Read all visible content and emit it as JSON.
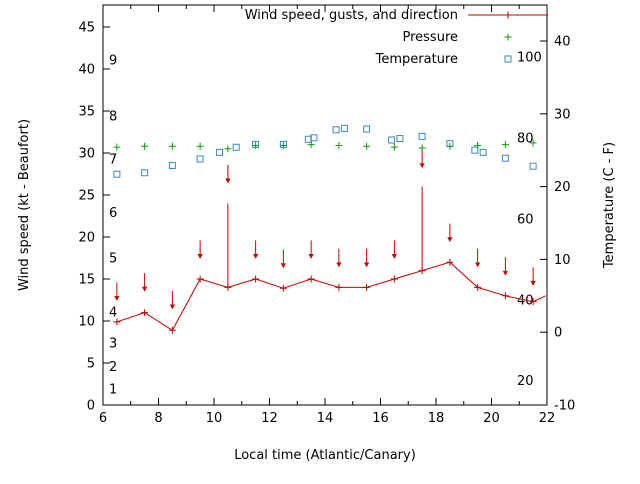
{
  "chart_data": {
    "type": "line",
    "title": "",
    "xlabel": "Local time (Atlantic/Canary)",
    "ylabel": "Wind speed (kt - Beaufort)",
    "y2label": "Temperature (C - F)",
    "x_range": [
      6,
      22
    ],
    "y_range": [
      0,
      47.6
    ],
    "y2_range": [
      -10,
      44.9
    ],
    "x_major_ticks": [
      6,
      8,
      10,
      12,
      14,
      16,
      18,
      20,
      22
    ],
    "x_minor_ticks": [
      7,
      9,
      11,
      13,
      15,
      17,
      19,
      21
    ],
    "y_ticks": [
      0,
      5,
      10,
      15,
      20,
      25,
      30,
      35,
      40,
      45
    ],
    "y2_ticks": [
      -10,
      0,
      10,
      20,
      30,
      40
    ],
    "beaufort_scale": [
      {
        "label": "1",
        "kt": 1.9
      },
      {
        "label": "2",
        "kt": 4.6
      },
      {
        "label": "3",
        "kt": 7.4
      },
      {
        "label": "4",
        "kt": 11.1
      },
      {
        "label": "5",
        "kt": 17.5
      },
      {
        "label": "6",
        "kt": 22.9
      },
      {
        "label": "7",
        "kt": 29.3
      },
      {
        "label": "8",
        "kt": 34.4
      },
      {
        "label": "9",
        "kt": 41.1
      }
    ],
    "fahrenheit_scale": [
      20,
      40,
      60,
      80,
      100
    ],
    "legend": {
      "wind": "Wind speed, gusts, and direction",
      "pressure": "Pressure",
      "temperature": "Temperature"
    },
    "colors": {
      "wind": "#c80000",
      "pressure": "#00a000",
      "temperature": "#3d85c6",
      "text": "#000000",
      "border": "#000000"
    },
    "series": {
      "wind": {
        "x": [
          6.5,
          7.5,
          8.5,
          9.5,
          10.5,
          11.5,
          12.5,
          13.5,
          14.5,
          15.5,
          16.5,
          17.5,
          18.5,
          19.5,
          20.5,
          21.5,
          21.95
        ],
        "speed": [
          9.9,
          11.0,
          8.9,
          15.0,
          14.0,
          15.0,
          13.9,
          15.0,
          14.0,
          14.0,
          15.0,
          16.0,
          17.0,
          14.0,
          13.0,
          12.3,
          13.0
        ],
        "gust": [
          9.9,
          11.0,
          8.9,
          15.0,
          24.0,
          15.0,
          13.9,
          15.0,
          14.0,
          14.0,
          15.0,
          26.0,
          17.0,
          14.0,
          13.0,
          12.3,
          13.0
        ],
        "arrow_tail": [
          14.6,
          15.7,
          13.6,
          19.6,
          28.6,
          19.6,
          18.5,
          19.6,
          18.6,
          18.6,
          19.6,
          30.4,
          21.6,
          18.6,
          17.6,
          16.4
        ],
        "arrow_tip": [
          12.4,
          13.5,
          11.4,
          17.4,
          26.4,
          17.4,
          16.3,
          17.4,
          16.4,
          16.4,
          17.4,
          28.2,
          19.4,
          16.4,
          15.4,
          14.2
        ]
      },
      "pressure": {
        "axis": "left",
        "x": [
          6.5,
          7.5,
          8.5,
          9.5,
          10.5,
          11.5,
          12.5,
          13.5,
          14.5,
          15.5,
          16.5,
          17.5,
          18.5,
          19.5,
          20.5,
          21.5
        ],
        "values": [
          30.7,
          30.8,
          30.8,
          30.8,
          30.5,
          30.9,
          30.9,
          31.0,
          30.9,
          30.8,
          30.7,
          30.6,
          30.8,
          30.9,
          31.0,
          31.2
        ]
      },
      "temperature": {
        "axis": "right",
        "x": [
          6.5,
          7.5,
          8.5,
          9.5,
          10.2,
          10.8,
          11.5,
          12.5,
          13.4,
          13.6,
          14.4,
          14.7,
          15.5,
          16.4,
          16.7,
          17.5,
          18.5,
          19.4,
          19.7,
          20.5,
          21.5
        ],
        "values_c": [
          21.7,
          21.9,
          22.9,
          23.8,
          24.7,
          25.4,
          25.8,
          25.8,
          26.5,
          26.7,
          27.8,
          28.0,
          27.9,
          26.4,
          26.6,
          26.9,
          25.9,
          25.0,
          24.7,
          23.9,
          22.8
        ]
      }
    }
  }
}
